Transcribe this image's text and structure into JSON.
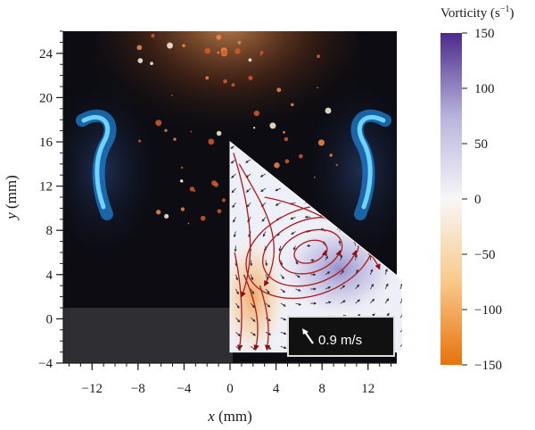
{
  "chart_data": {
    "type": "heatmap",
    "description_of_axes": "",
    "x_axis": {
      "label_var": "x",
      "label_unit": "(mm)",
      "range": [
        -14.5,
        14.5
      ],
      "ticks": [
        -12,
        -8,
        -4,
        0,
        4,
        8,
        12
      ],
      "tick_labels": [
        "−12",
        "−8",
        "−4",
        "0",
        "4",
        "8",
        "12"
      ]
    },
    "y_axis": {
      "label_var": "y",
      "label_unit": "(mm)",
      "range": [
        -4,
        26
      ],
      "ticks": [
        -4,
        0,
        4,
        8,
        12,
        16,
        20,
        24
      ],
      "tick_labels": [
        "−4",
        "0",
        "4",
        "8",
        "12",
        "16",
        "20",
        "24"
      ]
    },
    "colorbar": {
      "title": "Vorticity (s",
      "title_sup": "−1",
      "title_close": ")",
      "range": [
        -150,
        150
      ],
      "ticks": [
        150,
        100,
        50,
        0,
        -50,
        -100,
        -150
      ],
      "tick_labels": [
        "150",
        "100",
        "50",
        "0",
        "−50",
        "−100",
        "−150"
      ],
      "colors": {
        "max": "#4b2a8a",
        "mid_high": "#b7b3dc",
        "zero": "#f7f7f7",
        "mid_low": "#f8c98a",
        "min": "#e8720c"
      }
    },
    "piv_region": {
      "triangle_vertices": [
        [
          0,
          16
        ],
        [
          0,
          -3
        ],
        [
          15,
          -3
        ]
      ],
      "hypotenuse_end": [
        15,
        3.5
      ],
      "vortex_center": [
        7,
        6
      ],
      "max_vorticity_center": [
        9.5,
        4.5
      ],
      "min_vorticity_center": [
        2,
        2
      ]
    },
    "scale_vector": {
      "label": "0.9 m/s"
    }
  }
}
